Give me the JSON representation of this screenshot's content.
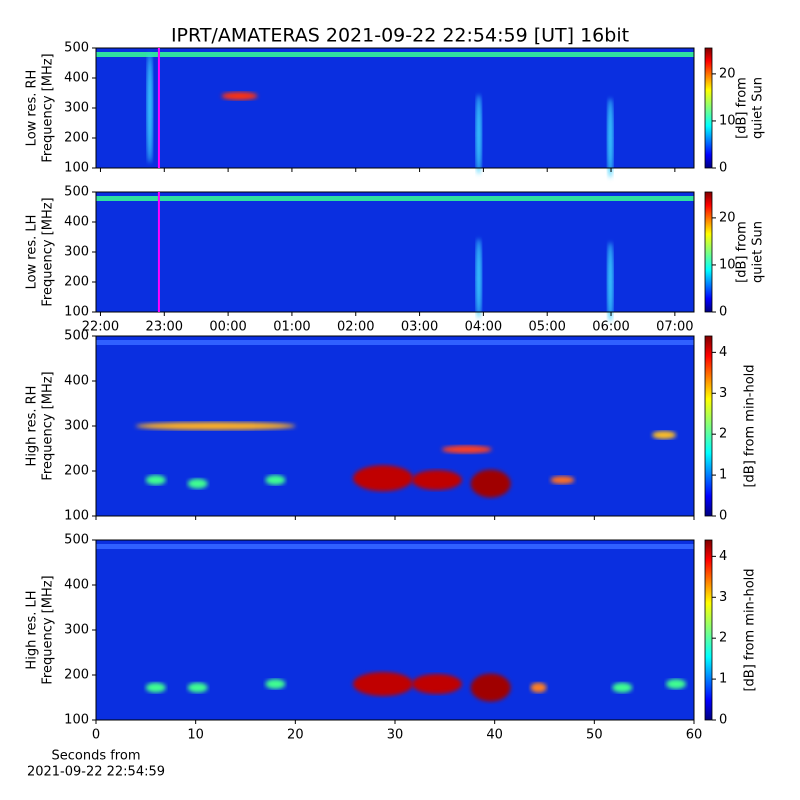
{
  "title": "IPRT/AMATERAS 2021-09-22 22:54:59 [UT]   16bit",
  "chart_data": [
    {
      "type": "heatmap",
      "ylabel": [
        "Low res. RH",
        "Frequency [MHz]"
      ],
      "ylim": [
        100,
        500
      ],
      "yticks": [
        100,
        200,
        300,
        400,
        500
      ],
      "xlim": [
        21.93,
        31.3
      ],
      "clim": [
        0,
        25.5
      ],
      "cticks": [
        0,
        10,
        20
      ],
      "clabel": [
        "[dB] from",
        "quiet Sun"
      ],
      "marker_x": 22.916,
      "marker_color": "#ff00ff"
    },
    {
      "type": "heatmap",
      "ylabel": [
        "Low res. LH",
        "Frequency [MHz]"
      ],
      "ylim": [
        100,
        500
      ],
      "yticks": [
        100,
        200,
        300,
        400,
        500
      ],
      "xlim": [
        21.93,
        31.3
      ],
      "xticks": [
        {
          "value": 22,
          "label": "22:00"
        },
        {
          "value": 23,
          "label": "23:00"
        },
        {
          "value": 24,
          "label": "00:00"
        },
        {
          "value": 25,
          "label": "01:00"
        },
        {
          "value": 26,
          "label": "02:00"
        },
        {
          "value": 27,
          "label": "03:00"
        },
        {
          "value": 28,
          "label": "04:00"
        },
        {
          "value": 29,
          "label": "05:00"
        },
        {
          "value": 30,
          "label": "06:00"
        },
        {
          "value": 31,
          "label": "07:00"
        }
      ],
      "clim": [
        0,
        25.5
      ],
      "cticks": [
        0,
        10,
        20
      ],
      "clabel": [
        "[dB] from",
        "quiet Sun"
      ],
      "marker_x": 22.916,
      "marker_color": "#ff00ff"
    },
    {
      "type": "heatmap",
      "ylabel": [
        "High res. RH",
        "Frequency [MHz]"
      ],
      "ylim": [
        100,
        500
      ],
      "yticks": [
        100,
        200,
        300,
        400,
        500
      ],
      "xlim": [
        0,
        60
      ],
      "clim": [
        0,
        4.4
      ],
      "cticks": [
        0,
        1,
        2,
        3,
        4
      ],
      "clabel": [
        "[dB] from min-hold"
      ]
    },
    {
      "type": "heatmap",
      "ylabel": [
        "High res. LH",
        "Frequency [MHz]"
      ],
      "ylim": [
        100,
        500
      ],
      "yticks": [
        100,
        200,
        300,
        400,
        500
      ],
      "xlim": [
        0,
        60
      ],
      "xticks": [
        0,
        10,
        20,
        30,
        40,
        50,
        60
      ],
      "xlabel": [
        "Seconds from",
        "2021-09-22 22:54:59"
      ],
      "clim": [
        0,
        4.4
      ],
      "cticks": [
        0,
        1,
        2,
        3,
        4
      ],
      "clabel": [
        "[dB] from min-hold"
      ]
    }
  ]
}
